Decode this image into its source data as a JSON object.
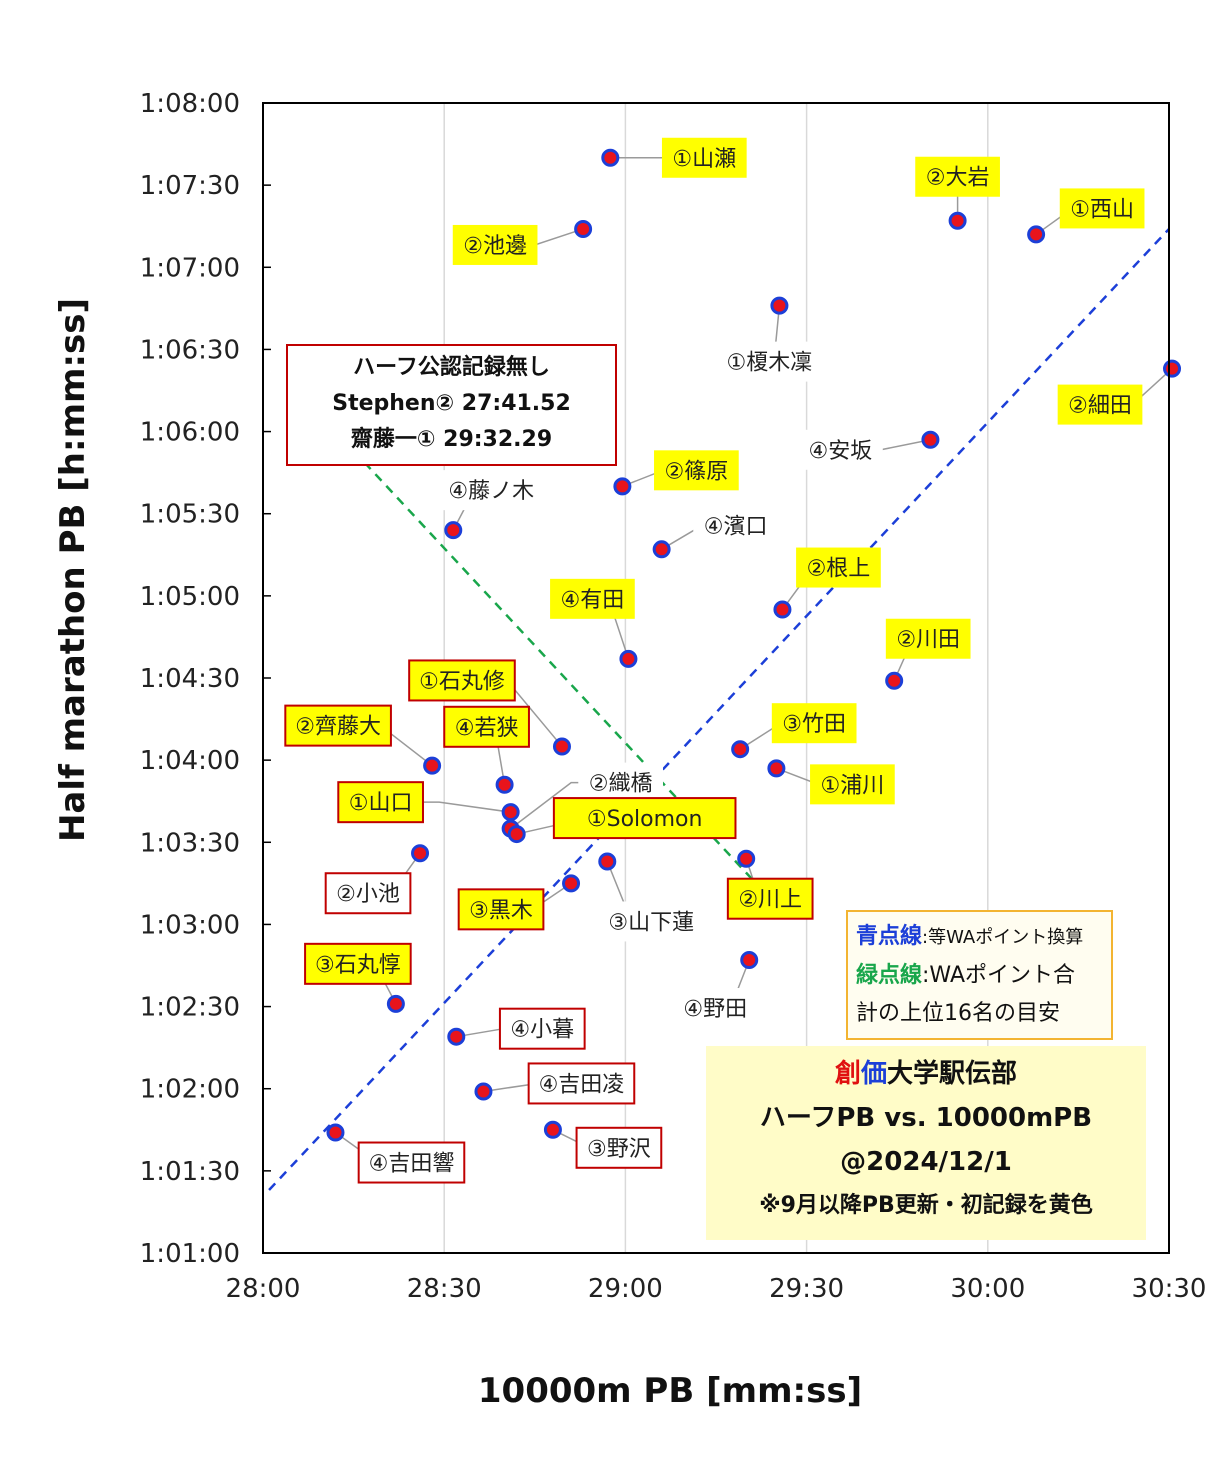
{
  "chart_data": {
    "type": "scatter",
    "xlabel": "10000m PB [mm:ss]",
    "ylabel": "Half marathon PB [h:mm:ss]",
    "xlim": [
      1680,
      1830
    ],
    "ylim": [
      3660,
      4080
    ],
    "x_ticks": [
      "28:00",
      "28:30",
      "29:00",
      "29:30",
      "30:00",
      "30:30"
    ],
    "y_ticks": [
      "1:01:00",
      "1:01:30",
      "1:02:00",
      "1:02:30",
      "1:03:00",
      "1:03:30",
      "1:04:00",
      "1:04:30",
      "1:05:00",
      "1:05:30",
      "1:06:00",
      "1:06:30",
      "1:07:00",
      "1:07:30",
      "1:08:00"
    ],
    "grid": "vertical",
    "points": [
      {
        "label": "①山瀬",
        "x": 1737.5,
        "y": 4060,
        "highlight": "yellow"
      },
      {
        "label": "②池邊",
        "x": 1733,
        "y": 4034,
        "highlight": "yellow"
      },
      {
        "label": "②大岩",
        "x": 1795,
        "y": 4037,
        "highlight": "yellow"
      },
      {
        "label": "①西山",
        "x": 1808,
        "y": 4032,
        "highlight": "yellow"
      },
      {
        "label": "①榎木凜",
        "x": 1765.5,
        "y": 4006,
        "highlight": "none"
      },
      {
        "label": "②細田",
        "x": 1830.5,
        "y": 3983,
        "highlight": "yellow"
      },
      {
        "label": "④安坂",
        "x": 1790.5,
        "y": 3957,
        "highlight": "none"
      },
      {
        "label": "②篠原",
        "x": 1739.5,
        "y": 3940,
        "highlight": "yellow"
      },
      {
        "label": "④藤ノ木",
        "x": 1711.5,
        "y": 3924,
        "highlight": "none"
      },
      {
        "label": "④濱口",
        "x": 1746,
        "y": 3917,
        "highlight": "none"
      },
      {
        "label": "②根上",
        "x": 1766,
        "y": 3895,
        "highlight": "yellow"
      },
      {
        "label": "④有田",
        "x": 1740.5,
        "y": 3877,
        "highlight": "yellow"
      },
      {
        "label": "②川田",
        "x": 1784.5,
        "y": 3869,
        "highlight": "yellow"
      },
      {
        "label": "①石丸修",
        "x": 1729.5,
        "y": 3845,
        "highlight": "yellow"
      },
      {
        "label": "③竹田",
        "x": 1759,
        "y": 3844,
        "highlight": "yellow"
      },
      {
        "label": "②齊藤大",
        "x": 1708,
        "y": 3838,
        "highlight": "yellow"
      },
      {
        "label": "①浦川",
        "x": 1765,
        "y": 3837,
        "highlight": "yellow"
      },
      {
        "label": "④若狭",
        "x": 1720,
        "y": 3831,
        "highlight": "yellow"
      },
      {
        "label": "①山口",
        "x": 1721,
        "y": 3821,
        "highlight": "yellow"
      },
      {
        "label": "②織橋",
        "x": 1721,
        "y": 3815,
        "highlight": "none"
      },
      {
        "label": "①Solomon",
        "x": 1722,
        "y": 3813,
        "highlight": "yellow"
      },
      {
        "label": "②小池",
        "x": 1706,
        "y": 3806,
        "highlight": "none"
      },
      {
        "label": "②川上",
        "x": 1760,
        "y": 3804,
        "highlight": "yellow"
      },
      {
        "label": "③山下蓮",
        "x": 1737,
        "y": 3803,
        "highlight": "none"
      },
      {
        "label": "③黒木",
        "x": 1731,
        "y": 3795,
        "highlight": "yellow"
      },
      {
        "label": "④野田",
        "x": 1760.5,
        "y": 3767,
        "highlight": "none"
      },
      {
        "label": "③石丸惇",
        "x": 1702,
        "y": 3751,
        "highlight": "yellow"
      },
      {
        "label": "④小暮",
        "x": 1712,
        "y": 3739,
        "highlight": "none"
      },
      {
        "label": "④吉田凌",
        "x": 1716.5,
        "y": 3719,
        "highlight": "none"
      },
      {
        "label": "③野沢",
        "x": 1728,
        "y": 3705,
        "highlight": "none"
      },
      {
        "label": "④吉田響",
        "x": 1692,
        "y": 3704,
        "highlight": "none"
      }
    ],
    "reference_lines": [
      {
        "name": "青点線",
        "color": "#1c3fd8",
        "style": "dashed",
        "from": [
          1681,
          3683
        ],
        "to": [
          1830,
          4034
        ]
      },
      {
        "name": "緑点線",
        "color": "#19a64b",
        "style": "dashed",
        "from": [
          1695,
          3953
        ],
        "to": [
          1765,
          3787
        ]
      }
    ]
  },
  "note": {
    "line1": "ハーフ公認記録無し",
    "line2": "Stephen② 27:41.52",
    "line3": "齋藤一① 29:32.29"
  },
  "legend": {
    "blue_key": "青点線",
    "blue_text": ":等WAポイント換算",
    "green_key": "緑点線",
    "green_text": ":WAポイント合",
    "green_text2": "計の上位16名の目安"
  },
  "title_box": {
    "name_red": "創",
    "name_blue": "価",
    "name_rest": "大学駅伝部",
    "line2": "ハーフPB vs. 10000mPB",
    "line3": "@2024/12/1",
    "line4": "※9月以降PB更新・初記録を黄色"
  },
  "colors": {
    "marker_fill": "#e8141c",
    "marker_ring": "#1c3fd8",
    "highlight_label_bg": "#ffff00",
    "label_border": "#c00000",
    "blue_line": "#1c3fd8",
    "green_line": "#19a64b"
  }
}
